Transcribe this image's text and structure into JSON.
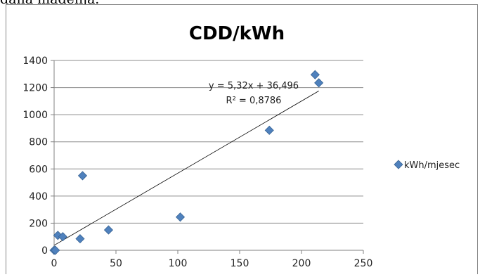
{
  "page": {
    "caption_fragment": "dana mađenja."
  },
  "colors": {
    "marker": "#4f81bd",
    "marker_edge": "#3a6595",
    "trendline": "#000000",
    "grid": "#8c8c8c",
    "axis": "#808080"
  },
  "chart_data": {
    "type": "scatter",
    "title": "CDD/kWh",
    "xlabel": "",
    "ylabel": "",
    "xlim": [
      0,
      250
    ],
    "ylim": [
      0,
      1400
    ],
    "xticks": [
      0,
      50,
      100,
      150,
      200,
      250
    ],
    "yticks": [
      0,
      200,
      400,
      600,
      800,
      1000,
      1200,
      1400
    ],
    "grid": true,
    "legend_position": "right",
    "series": [
      {
        "name": "kWh/mjesec",
        "marker": "diamond",
        "points": [
          {
            "x": 0,
            "y": 0
          },
          {
            "x": 1,
            "y": 0
          },
          {
            "x": 3,
            "y": 110
          },
          {
            "x": 7,
            "y": 100
          },
          {
            "x": 21,
            "y": 85
          },
          {
            "x": 23,
            "y": 550
          },
          {
            "x": 44,
            "y": 150
          },
          {
            "x": 102,
            "y": 245
          },
          {
            "x": 174,
            "y": 885
          },
          {
            "x": 211,
            "y": 1295
          },
          {
            "x": 214,
            "y": 1235
          }
        ]
      }
    ],
    "trendline": {
      "type": "linear",
      "slope": 5.32,
      "intercept": 36.496,
      "x_range": [
        0,
        214
      ],
      "equation_label": "y = 5,32x + 36,496",
      "r2_label": "R² = 0,8786"
    }
  }
}
